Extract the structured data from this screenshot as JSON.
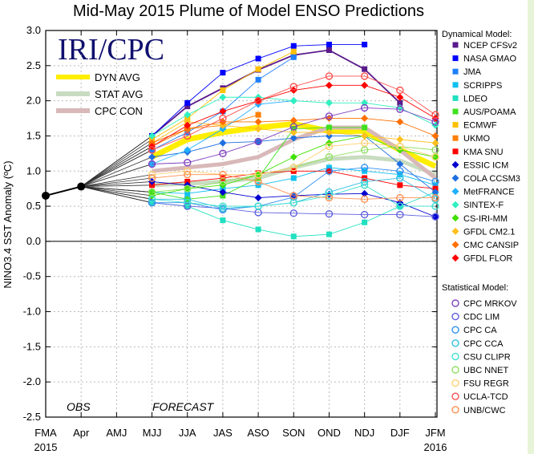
{
  "chart_data": {
    "type": "line",
    "title": "Mid-May 2015 Plume of Model ENSO Predictions",
    "logo_text": "IRI/CPC",
    "ylabel": "NINO3.4 SST Anomaly (ºC)",
    "xlabel": "",
    "categories": [
      "FMA",
      "Apr",
      "AMJ",
      "MJJ",
      "JJA",
      "JAS",
      "ASO",
      "SON",
      "OND",
      "NDJ",
      "DJF",
      "JFM"
    ],
    "year_labels": [
      {
        "category": "FMA",
        "label": "2015"
      },
      {
        "category": "JFM",
        "label": "2016"
      }
    ],
    "annotations": {
      "obs": "OBS",
      "forecast": "FORECAST"
    },
    "ylim": [
      -2.5,
      3.0
    ],
    "yticks": [
      -2.5,
      -2.0,
      -1.5,
      -1.0,
      -0.5,
      0.0,
      0.5,
      1.0,
      1.5,
      2.0,
      2.5,
      3.0
    ],
    "grid": true,
    "observed": {
      "categories": [
        "FMA",
        "Apr"
      ],
      "values": [
        0.65,
        0.78
      ],
      "color": "#000000"
    },
    "forecast_categories": [
      "MJJ",
      "JJA",
      "JAS",
      "ASO",
      "SON",
      "OND",
      "NDJ",
      "DJF",
      "JFM"
    ],
    "averages": [
      {
        "name": "DYN AVG",
        "color": "#ffee00",
        "values": [
          1.2,
          1.45,
          1.55,
          1.62,
          1.67,
          1.57,
          1.57,
          1.3,
          1.07
        ]
      },
      {
        "name": "STAT AVG",
        "color": "#c8dcc0",
        "values": [
          0.8,
          0.82,
          0.85,
          0.9,
          1.05,
          1.17,
          1.2,
          1.15,
          0.95
        ]
      },
      {
        "name": "CPC CON",
        "color": "#d8b8b8",
        "values": [
          1.0,
          1.05,
          1.1,
          1.2,
          1.45,
          1.62,
          1.62,
          1.3,
          0.9
        ]
      }
    ],
    "legend_dynamical_title": "Dynamical Model:",
    "legend_statistical_title": "Statistical Model:",
    "dynamical": [
      {
        "name": "NCEP CFSv2",
        "color": "#5a1a8c",
        "marker": "square",
        "values": [
          1.5,
          1.92,
          2.18,
          2.44,
          2.65,
          2.72,
          2.45,
          1.97,
          null
        ]
      },
      {
        "name": "NASA GMAO",
        "color": "#0000ff",
        "marker": "square",
        "values": [
          1.5,
          1.97,
          2.4,
          2.6,
          2.78,
          2.8,
          2.8,
          null,
          null
        ]
      },
      {
        "name": "JMA",
        "color": "#1e7fff",
        "marker": "square",
        "values": [
          1.3,
          1.55,
          1.85,
          2.3,
          2.62,
          null,
          null,
          null,
          null
        ]
      },
      {
        "name": "SCRIPPS",
        "color": "#10c0f0",
        "marker": "square",
        "values": [
          0.7,
          0.68,
          0.75,
          0.8,
          0.9,
          1.05,
          1.0,
          0.95,
          0.8
        ]
      },
      {
        "name": "LDEO",
        "color": "#20e0c0",
        "marker": "square",
        "values": [
          0.55,
          0.5,
          0.3,
          0.17,
          0.07,
          0.1,
          0.27,
          0.5,
          0.7
        ]
      },
      {
        "name": "AUS/POAMA",
        "color": "#40e020",
        "marker": "square",
        "values": [
          0.7,
          0.6,
          0.65,
          0.9,
          1.6,
          1.62,
          1.62,
          null,
          null
        ]
      },
      {
        "name": "ECMWF",
        "color": "#ffc000",
        "marker": "square",
        "values": [
          1.45,
          1.75,
          2.15,
          2.45,
          2.7,
          null,
          null,
          null,
          null
        ]
      },
      {
        "name": "UKMO",
        "color": "#ff7f00",
        "marker": "square",
        "values": [
          1.35,
          1.6,
          1.65,
          1.8,
          null,
          null,
          null,
          null,
          null
        ]
      },
      {
        "name": "KMA SNU",
        "color": "#ff0000",
        "marker": "square",
        "values": [
          0.8,
          0.85,
          0.9,
          0.97,
          1.0,
          1.0,
          0.9,
          0.8,
          0.75
        ]
      },
      {
        "name": "ESSIC ICM",
        "color": "#0000d0",
        "marker": "diamond",
        "values": [
          0.85,
          0.8,
          0.7,
          0.62,
          0.65,
          0.67,
          0.68,
          0.55,
          0.35
        ]
      },
      {
        "name": "COLA CCSM3",
        "color": "#1e6fe0",
        "marker": "diamond",
        "values": [
          1.2,
          1.27,
          1.4,
          1.42,
          1.47,
          1.5,
          1.5,
          1.1,
          0.7
        ]
      },
      {
        "name": "MetFRANCE",
        "color": "#20b0ff",
        "marker": "diamond",
        "values": [
          1.1,
          1.3,
          1.6,
          1.95,
          2.0,
          null,
          null,
          null,
          null
        ]
      },
      {
        "name": "SINTEX-F",
        "color": "#30f0c0",
        "marker": "diamond",
        "values": [
          1.5,
          1.8,
          2.05,
          2.05,
          2.0,
          1.97,
          1.97,
          1.9,
          1.65
        ]
      },
      {
        "name": "CS-IRI-MM",
        "color": "#40e000",
        "marker": "diamond",
        "values": [
          0.65,
          0.75,
          0.8,
          0.95,
          1.2,
          1.4,
          1.5,
          1.3,
          1.2
        ]
      },
      {
        "name": "GFDL CM2.1",
        "color": "#ffc020",
        "marker": "diamond",
        "values": [
          1.4,
          1.7,
          1.65,
          1.6,
          1.55,
          1.55,
          1.5,
          1.45,
          1.4
        ]
      },
      {
        "name": "CMC CANSIP",
        "color": "#ff7000",
        "marker": "diamond",
        "values": [
          1.4,
          1.6,
          1.7,
          1.7,
          1.72,
          1.75,
          1.75,
          1.7,
          1.5
        ]
      },
      {
        "name": "GFDL FLOR",
        "color": "#ff0000",
        "marker": "diamond",
        "values": [
          1.35,
          1.65,
          1.85,
          2.0,
          2.15,
          2.22,
          2.22,
          2.05,
          1.75
        ]
      }
    ],
    "statistical": [
      {
        "name": "CPC MRKOV",
        "color": "#8040c0",
        "marker": "circle",
        "values": [
          1.1,
          1.12,
          1.25,
          1.42,
          1.63,
          1.78,
          1.9,
          1.88,
          1.7
        ]
      },
      {
        "name": "CDC LIM",
        "color": "#6060e0",
        "marker": "circle",
        "values": [
          0.55,
          0.5,
          0.47,
          0.41,
          0.4,
          0.39,
          0.38,
          0.38,
          0.35
        ]
      },
      {
        "name": "CPC CA",
        "color": "#3090f0",
        "marker": "circle",
        "values": [
          0.55,
          0.55,
          0.45,
          0.5,
          0.63,
          1.0,
          1.05,
          1.0,
          0.85
        ]
      },
      {
        "name": "CPC CCA",
        "color": "#30c0e0",
        "marker": "circle",
        "values": [
          0.6,
          0.6,
          0.47,
          0.5,
          0.55,
          0.7,
          0.85,
          0.9,
          0.6
        ]
      },
      {
        "name": "CSU CLIPR",
        "color": "#40e0d0",
        "marker": "circle",
        "values": [
          0.6,
          0.55,
          0.5,
          0.5,
          0.55,
          0.65,
          0.8,
          0.5,
          0.5
        ]
      },
      {
        "name": "UBC NNET",
        "color": "#90e060",
        "marker": "circle",
        "values": [
          0.7,
          0.75,
          0.85,
          0.95,
          1.05,
          1.2,
          1.3,
          1.35,
          1.3
        ]
      },
      {
        "name": "FSU REGR",
        "color": "#ffd070",
        "marker": "circle",
        "values": [
          0.95,
          1.0,
          0.95,
          0.95,
          1.05,
          1.35,
          1.4,
          1.35,
          1.2
        ]
      },
      {
        "name": "UCLA-TCD",
        "color": "#ff5050",
        "marker": "circle",
        "values": [
          1.3,
          1.5,
          1.75,
          2.0,
          2.2,
          2.35,
          2.35,
          2.15,
          1.8
        ]
      },
      {
        "name": "UNB/CWC",
        "color": "#ff9050",
        "marker": "circle",
        "values": [
          0.9,
          0.95,
          0.95,
          0.85,
          0.65,
          0.62,
          0.6,
          0.62,
          0.62
        ]
      }
    ]
  }
}
